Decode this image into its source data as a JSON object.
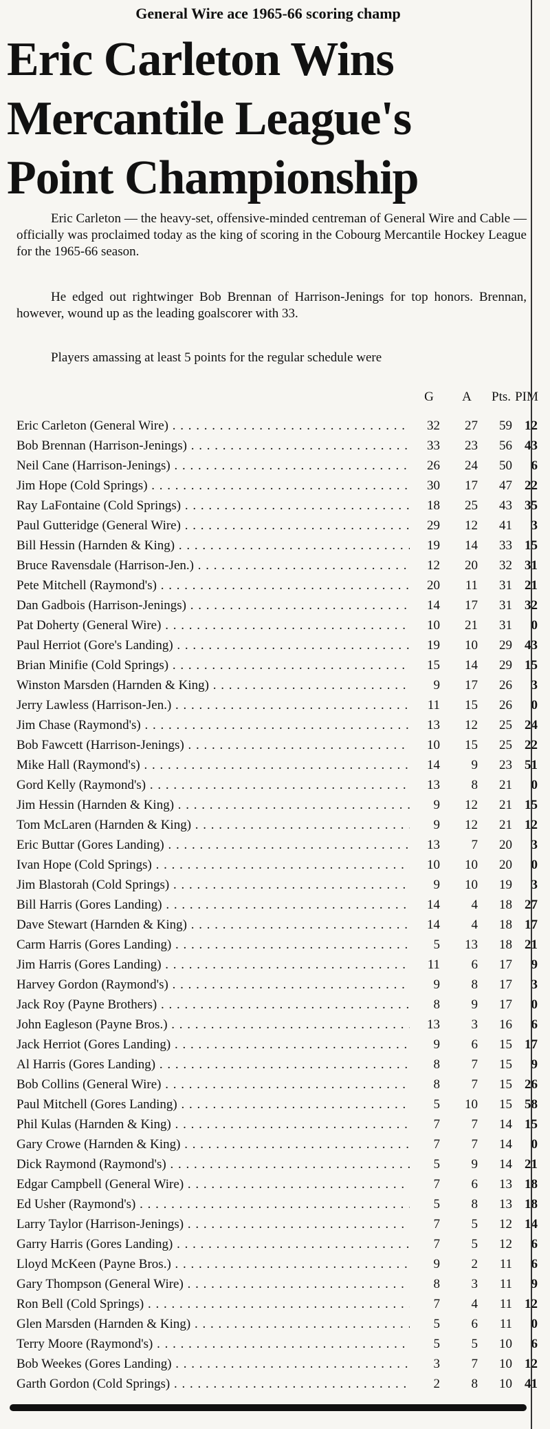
{
  "kicker": "General Wire ace 1965-66 scoring champ",
  "headline": [
    "Eric Carleton Wins",
    "Mercantile League's",
    "Point Championship"
  ],
  "paragraphs": [
    "Eric Carleton — the heavy-set, offensive-minded centreman of General Wire and Cable — officially was proclaimed today as the king of scoring in the Cobourg Mercantile Hockey League for the 1965-66 season.",
    "He edged out rightwinger Bob Brennan of Harrison-Jenings for top honors. Brennan, however, wound up as the leading goalscorer with 33.",
    "Players amassing at least 5 points for the regular schedule were"
  ],
  "table": {
    "header": [
      "G",
      "A",
      "Pts.",
      "PIM"
    ],
    "rows": [
      [
        "Eric Carleton (General Wire)",
        32,
        27,
        59,
        12
      ],
      [
        "Bob Brennan (Harrison-Jenings)",
        33,
        23,
        56,
        43
      ],
      [
        "Neil Cane (Harrison-Jenings)",
        26,
        24,
        50,
        6
      ],
      [
        "Jim Hope (Cold Springs)",
        30,
        17,
        47,
        22
      ],
      [
        "Ray LaFontaine (Cold Springs)",
        18,
        25,
        43,
        35
      ],
      [
        "Paul Gutteridge (General Wire)",
        29,
        12,
        41,
        3
      ],
      [
        "Bill Hessin (Harnden & King)",
        19,
        14,
        33,
        15
      ],
      [
        "Bruce Ravensdale (Harrison-Jen.)",
        12,
        20,
        32,
        31
      ],
      [
        "Pete Mitchell (Raymond's)",
        20,
        11,
        31,
        21
      ],
      [
        "Dan Gadbois (Harrison-Jenings)",
        14,
        17,
        31,
        32
      ],
      [
        "Pat Doherty (General Wire)",
        10,
        21,
        31,
        0
      ],
      [
        "Paul Herriot (Gore's Landing)",
        19,
        10,
        29,
        43
      ],
      [
        "Brian Minifie (Cold Springs)",
        15,
        14,
        29,
        15
      ],
      [
        "Winston Marsden (Harnden & King)",
        9,
        17,
        26,
        3
      ],
      [
        "Jerry Lawless (Harrison-Jen.)",
        11,
        15,
        26,
        0
      ],
      [
        "Jim Chase (Raymond's)",
        13,
        12,
        25,
        24
      ],
      [
        "Bob Fawcett (Harrison-Jenings)",
        10,
        15,
        25,
        22
      ],
      [
        "Mike Hall (Raymond's)",
        14,
        9,
        23,
        51
      ],
      [
        "Gord Kelly (Raymond's)",
        13,
        8,
        21,
        0
      ],
      [
        "Jim Hessin (Harnden & King)",
        9,
        12,
        21,
        15
      ],
      [
        "Tom McLaren (Harnden & King)",
        9,
        12,
        21,
        12
      ],
      [
        "Eric Buttar (Gores Landing)",
        13,
        7,
        20,
        3
      ],
      [
        "Ivan Hope (Cold Springs)",
        10,
        10,
        20,
        0
      ],
      [
        "Jim Blastorah (Cold Springs)",
        9,
        10,
        19,
        3
      ],
      [
        "Bill Harris (Gores Landing)",
        14,
        4,
        18,
        27
      ],
      [
        "Dave Stewart (Harnden & King)",
        14,
        4,
        18,
        17
      ],
      [
        "Carm Harris (Gores Landing)",
        5,
        13,
        18,
        21
      ],
      [
        "Jim Harris (Gores Landing)",
        11,
        6,
        17,
        9
      ],
      [
        "Harvey Gordon (Raymond's)",
        9,
        8,
        17,
        3
      ],
      [
        "Jack Roy (Payne Brothers)",
        8,
        9,
        17,
        0
      ],
      [
        "John Eagleson (Payne Bros.)",
        13,
        3,
        16,
        6
      ],
      [
        "Jack Herriot (Gores Landing)",
        9,
        6,
        15,
        17
      ],
      [
        "Al Harris (Gores Landing)",
        8,
        7,
        15,
        9
      ],
      [
        "Bob Collins (General Wire)",
        8,
        7,
        15,
        26
      ],
      [
        "Paul Mitchell (Gores Landing)",
        5,
        10,
        15,
        58
      ],
      [
        "Phil Kulas (Harnden & King)",
        7,
        7,
        14,
        15
      ],
      [
        "Gary Crowe (Harnden & King)",
        7,
        7,
        14,
        0
      ],
      [
        "Dick Raymond (Raymond's)",
        5,
        9,
        14,
        21
      ],
      [
        "Edgar Campbell (General Wire)",
        7,
        6,
        13,
        18
      ],
      [
        "Ed Usher (Raymond's)",
        5,
        8,
        13,
        18
      ],
      [
        "Larry Taylor (Harrison-Jenings)",
        7,
        5,
        12,
        14
      ],
      [
        "Garry Harris (Gores Landing)",
        7,
        5,
        12,
        6
      ],
      [
        "Lloyd McKeen (Payne Bros.)",
        9,
        2,
        11,
        6
      ],
      [
        "Gary Thompson (General Wire)",
        8,
        3,
        11,
        9
      ],
      [
        "Ron Bell (Cold Springs)",
        7,
        4,
        11,
        12
      ],
      [
        "Glen Marsden (Harnden & King)",
        5,
        6,
        11,
        0
      ],
      [
        "Terry Moore (Raymond's)",
        5,
        5,
        10,
        6
      ],
      [
        "Bob Weekes (Gores Landing)",
        3,
        7,
        10,
        12
      ],
      [
        "Garth Gordon (Cold Springs)",
        2,
        8,
        10,
        41
      ]
    ]
  }
}
